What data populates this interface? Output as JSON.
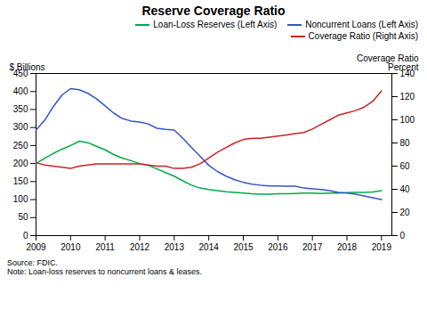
{
  "chart_data": {
    "type": "line",
    "title": "Reserve Coverage Ratio",
    "ylabel": "$ Billions",
    "y2label": "Coverage Ratio\nPercent",
    "caption": "Source: FDIC.\nNote: Loan-loss reserves to noncurrent loans & leases.",
    "x": [
      2009,
      2009.25,
      2009.5,
      2009.75,
      2010,
      2010.25,
      2010.5,
      2010.75,
      2011,
      2011.25,
      2011.5,
      2011.75,
      2012,
      2012.25,
      2012.5,
      2012.75,
      2013,
      2013.25,
      2013.5,
      2013.75,
      2014,
      2014.25,
      2014.5,
      2014.75,
      2015,
      2015.25,
      2015.5,
      2015.75,
      2016,
      2016.25,
      2016.5,
      2016.75,
      2017,
      2017.25,
      2017.5,
      2017.75,
      2018,
      2018.25,
      2018.5,
      2018.75,
      2019
    ],
    "series": [
      {
        "name": "Loan-Loss Reserves (Left Axis)",
        "color": "#00aa44",
        "values": [
          200,
          215,
          228,
          240,
          250,
          262,
          258,
          248,
          238,
          225,
          215,
          208,
          200,
          195,
          185,
          175,
          165,
          152,
          140,
          132,
          128,
          125,
          122,
          120,
          118,
          116,
          115,
          115,
          116,
          116,
          117,
          118,
          118,
          117,
          118,
          118,
          119,
          120,
          120,
          121,
          125
        ]
      },
      {
        "name": "Noncurrent Loans (Left Axis)",
        "color": "#3355cc",
        "values": [
          293,
          320,
          358,
          390,
          408,
          405,
          395,
          380,
          360,
          340,
          325,
          318,
          315,
          310,
          298,
          295,
          293,
          270,
          245,
          220,
          195,
          178,
          165,
          155,
          148,
          143,
          140,
          138,
          138,
          137,
          137,
          132,
          130,
          128,
          125,
          120,
          118,
          115,
          110,
          105,
          100
        ]
      },
      {
        "name": "Coverage Ratio (Right Axis)",
        "color": "#cc2222",
        "axis": "y2",
        "values": [
          63,
          61,
          60,
          59,
          58,
          60,
          61,
          62,
          62,
          62,
          62,
          62,
          62,
          61,
          60,
          60,
          58,
          58,
          59,
          62,
          67,
          72,
          76,
          80,
          83,
          84,
          84,
          85,
          86,
          87,
          88,
          89,
          92,
          96,
          100,
          104,
          106,
          108,
          111,
          116,
          125
        ]
      }
    ],
    "xlim": [
      2009,
      2019.3
    ],
    "xticks": [
      2009,
      2010,
      2011,
      2012,
      2013,
      2014,
      2015,
      2016,
      2017,
      2018,
      2019
    ],
    "ylim": [
      0,
      450
    ],
    "yticks": [
      0,
      50,
      100,
      150,
      200,
      250,
      300,
      350,
      400,
      450
    ],
    "y2lim": [
      0,
      140
    ],
    "y2ticks": [
      0,
      20,
      40,
      60,
      80,
      100,
      120,
      140
    ],
    "grid": false,
    "legend": "upper right"
  }
}
